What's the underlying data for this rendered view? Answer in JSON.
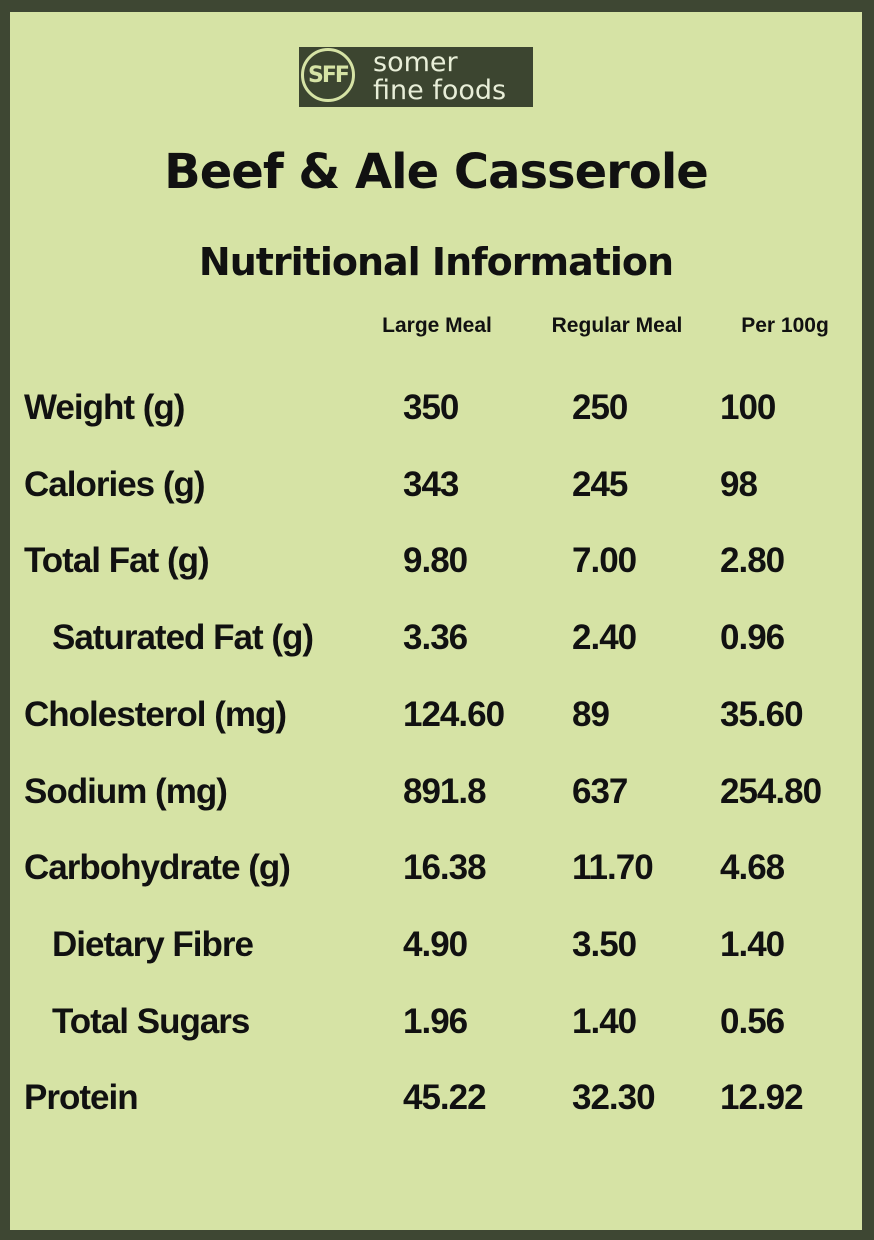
{
  "logo": {
    "monogram": "SFF",
    "lines": [
      "somer",
      "fine foods"
    ]
  },
  "title": "Beef & Ale Casserole",
  "subtitle": "Nutritional Information",
  "table": {
    "columns": [
      "Large Meal",
      "Regular Meal",
      "Per 100g"
    ],
    "rows": [
      {
        "label": "Weight (g)",
        "values": [
          "350",
          "250",
          "100"
        ]
      },
      {
        "label": "Calories (g)",
        "values": [
          "343",
          "245",
          "98"
        ]
      },
      {
        "label": "Total Fat (g)",
        "values": [
          "9.80",
          "7.00",
          "2.80"
        ],
        "subrows": [
          {
            "label": "Saturated Fat (g)",
            "values": [
              "3.36",
              "2.40",
              "0.96"
            ]
          }
        ]
      },
      {
        "label": "Cholesterol (mg)",
        "values": [
          "124.60",
          "89",
          "35.60"
        ]
      },
      {
        "label": "Sodium (mg)",
        "values": [
          "891.8",
          "637",
          "254.80"
        ]
      },
      {
        "label": "Carbohydrate (g)",
        "values": [
          "16.38",
          "11.70",
          "4.68"
        ],
        "subrows": [
          {
            "label": "Dietary Fibre",
            "values": [
              "4.90",
              "3.50",
              "1.40"
            ]
          },
          {
            "label": "Total Sugars",
            "values": [
              "1.96",
              "1.40",
              "0.56"
            ]
          }
        ]
      },
      {
        "label": "Protein",
        "values": [
          "45.22",
          "32.30",
          "12.92"
        ]
      }
    ]
  }
}
